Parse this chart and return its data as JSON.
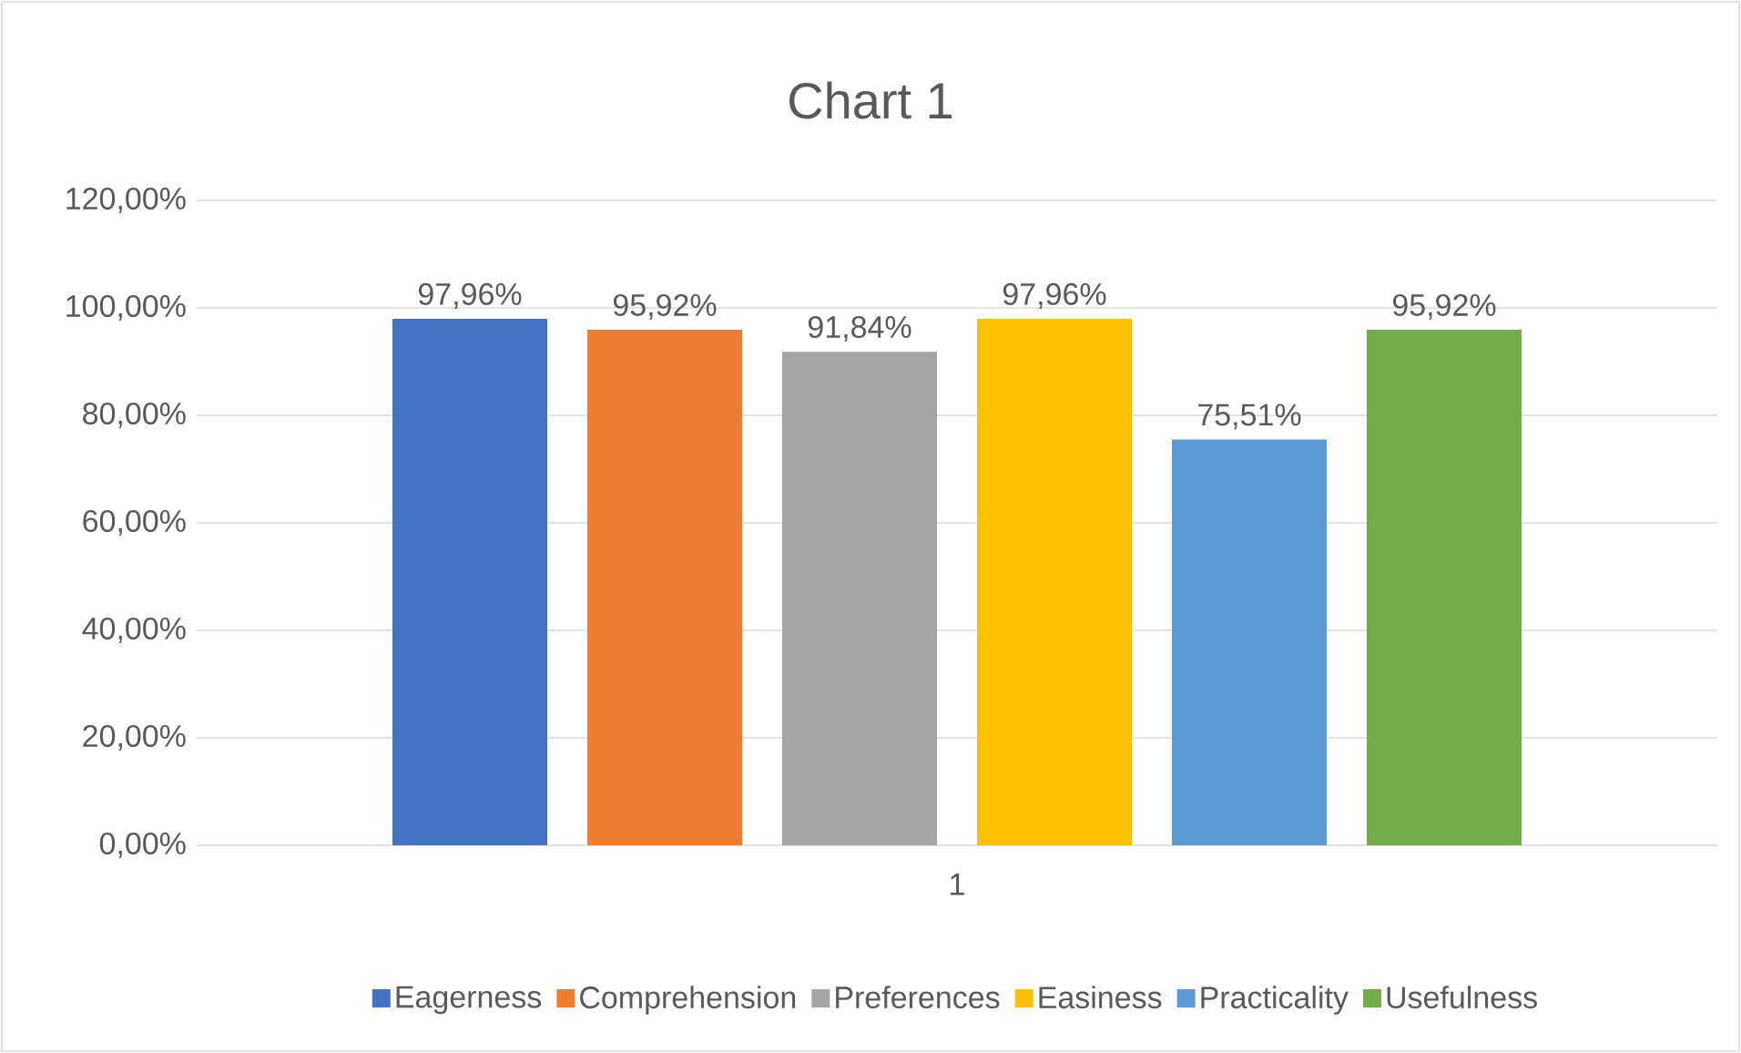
{
  "chart_data": {
    "type": "bar",
    "title": "Chart 1",
    "categories": [
      "1"
    ],
    "series": [
      {
        "name": "Eagerness",
        "color": "#4472c4",
        "values": [
          97.96
        ],
        "value_labels": [
          "97,96%"
        ]
      },
      {
        "name": "Comprehension",
        "color": "#ed7d31",
        "values": [
          95.92
        ],
        "value_labels": [
          "95,92%"
        ]
      },
      {
        "name": "Preferences",
        "color": "#a5a5a5",
        "values": [
          91.84
        ],
        "value_labels": [
          "91,84%"
        ]
      },
      {
        "name": "Easiness",
        "color": "#ffc000",
        "values": [
          97.96
        ],
        "value_labels": [
          "97,96%"
        ]
      },
      {
        "name": "Practicality",
        "color": "#5b9bd5",
        "values": [
          75.51
        ],
        "value_labels": [
          "75,51%"
        ]
      },
      {
        "name": "Usefulness",
        "color": "#70ad47",
        "values": [
          95.92
        ],
        "value_labels": [
          "95,92%"
        ]
      }
    ],
    "ylim": [
      0,
      120
    ],
    "yticks": [
      {
        "value": 0,
        "label": "0,00%"
      },
      {
        "value": 20,
        "label": "20,00%"
      },
      {
        "value": 40,
        "label": "40,00%"
      },
      {
        "value": 60,
        "label": "60,00%"
      },
      {
        "value": 80,
        "label": "80,00%"
      },
      {
        "value": 100,
        "label": "100,00%"
      },
      {
        "value": 120,
        "label": "120,00%"
      }
    ],
    "grid": "y",
    "legend": "bottom"
  }
}
